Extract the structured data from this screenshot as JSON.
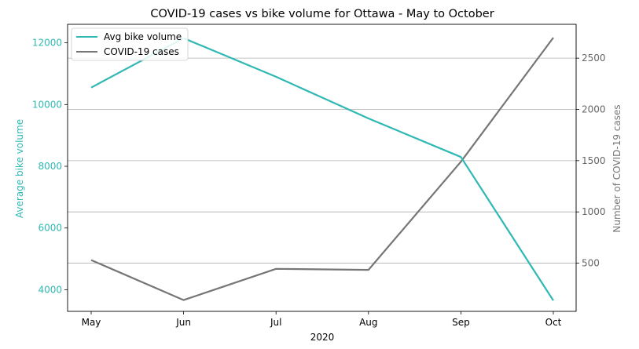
{
  "chart_data": {
    "type": "line",
    "title": "COVID-19 cases vs bike volume for Ottawa - May to October",
    "xlabel": "2020",
    "categories": [
      "May",
      "Jun",
      "Jul",
      "Aug",
      "Sep",
      "Oct"
    ],
    "series": [
      {
        "name": "Avg bike volume",
        "axis": "left",
        "color": "#2fb8b4",
        "values": [
          10550,
          12150,
          10900,
          9550,
          8300,
          3650
        ]
      },
      {
        "name": "COVID-19 cases",
        "axis": "right",
        "color": "#767676",
        "values": [
          530,
          140,
          445,
          435,
          1490,
          2700
        ]
      }
    ],
    "y_left": {
      "label": "Average bike volume",
      "ticks": [
        4000,
        6000,
        8000,
        10000,
        12000
      ],
      "range": [
        3300,
        12600
      ]
    },
    "y_right": {
      "label": "Number of COVID-19 cases",
      "ticks": [
        500,
        1000,
        1500,
        2000,
        2500
      ],
      "range": [
        30,
        2830
      ]
    },
    "grid": "horizontal (right axis)",
    "legend": "top-left"
  }
}
